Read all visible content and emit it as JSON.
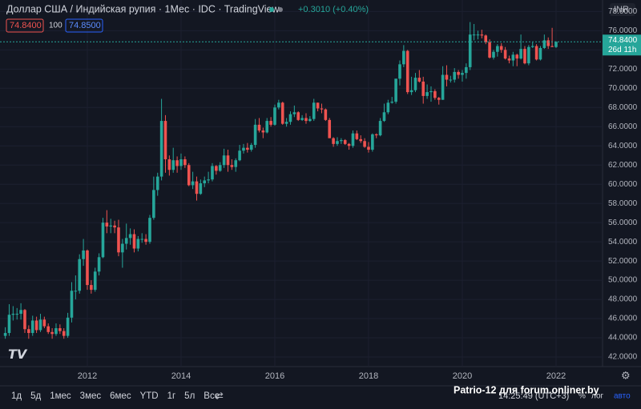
{
  "chart_data": {
    "type": "candlestick",
    "title": "Доллар США / Индийская рупия · 1Мес · IDC · TradingView",
    "change": "+0.3010 (+0.40%)",
    "bid": "74.8400",
    "spread": "100",
    "ask": "74.8500",
    "currency": "INR",
    "price_label": "74.8400",
    "countdown": "26d 11h",
    "timeframes": [
      "1д",
      "5д",
      "1мес",
      "3мес",
      "6мес",
      "YTD",
      "1г",
      "5л",
      "Все"
    ],
    "clock": "14:25:49 (UTC+3)",
    "scale_buttons": [
      "%",
      "лог",
      "авто"
    ],
    "watermark": "Patrio-12 для forum.onliner.by",
    "up_color": "#26a69a",
    "down_color": "#ef5350",
    "grid": true,
    "categories": [
      null,
      null,
      null,
      null,
      null,
      null,
      null,
      null,
      null,
      null,
      null,
      null,
      null,
      null,
      null,
      null,
      null,
      null,
      null,
      null,
      null,
      "2012",
      null,
      null,
      null,
      null,
      null,
      null,
      null,
      null,
      null,
      null,
      null,
      null,
      null,
      null,
      null,
      null,
      null,
      null,
      null,
      null,
      null,
      null,
      null,
      "2014",
      null,
      null,
      null,
      null,
      null,
      null,
      null,
      null,
      null,
      null,
      null,
      null,
      null,
      null,
      null,
      null,
      null,
      null,
      null,
      null,
      null,
      null,
      null,
      "2016",
      null,
      null,
      null,
      null,
      null,
      null,
      null,
      null,
      null,
      null,
      null,
      null,
      null,
      null,
      null,
      null,
      null,
      null,
      null,
      null,
      null,
      null,
      null,
      "2018",
      null,
      null,
      null,
      null,
      null,
      null,
      null,
      null,
      null,
      null,
      null,
      null,
      null,
      null,
      null,
      null,
      null,
      null,
      null,
      null,
      null,
      null,
      null,
      "2020",
      null,
      null,
      null,
      null,
      null,
      null,
      null,
      null,
      null,
      null,
      null,
      null,
      null,
      null,
      null,
      null,
      null,
      null,
      null,
      null,
      null,
      null,
      null,
      "2022"
    ],
    "open": [
      44.2,
      44.5,
      46.4,
      46.5,
      46.5,
      46.9,
      44.9,
      44.5,
      45.8,
      44.8,
      45.9,
      45.2,
      44.6,
      44.4,
      45.0,
      44.7,
      44.2,
      46.1,
      48.9,
      48.9,
      52.2,
      53.1,
      49.5,
      49.0,
      50.9,
      52.4,
      56.0,
      55.6,
      55.7,
      55.5,
      52.9,
      53.8,
      54.4,
      54.8,
      53.3,
      54.3,
      54.3,
      54.0,
      56.5,
      59.4,
      60.8,
      66.6,
      62.6,
      61.5,
      62.5,
      61.9,
      62.6,
      62.0,
      59.9,
      60.3,
      59.0,
      60.1,
      60.4,
      60.5,
      61.9,
      61.4,
      62.0,
      63.0,
      62.0,
      61.8,
      62.5,
      63.5,
      63.8,
      63.6,
      64.1,
      66.2,
      65.6,
      65.4,
      66.6,
      66.2,
      68.0,
      68.5,
      66.3,
      66.5,
      67.3,
      67.5,
      66.7,
      66.9,
      66.6,
      66.8,
      68.5,
      67.9,
      67.8,
      66.7,
      64.8,
      64.2,
      64.5,
      64.6,
      64.2,
      64.0,
      65.3,
      64.7,
      64.5,
      63.9,
      63.6,
      65.2,
      65.1,
      66.6,
      67.5,
      68.5,
      68.6,
      71.0,
      72.5,
      73.9,
      69.6,
      69.8,
      71.1,
      70.7,
      69.2,
      69.6,
      69.7,
      69.0,
      68.8,
      71.4,
      70.9,
      70.9,
      71.7,
      71.4,
      71.6,
      72.2,
      75.6,
      75.6,
      75.6,
      75.5,
      74.8,
      73.2,
      73.8,
      74.4,
      74.0,
      73.1,
      72.9,
      73.5,
      73.1,
      74.1,
      72.6,
      74.3,
      74.4,
      73.0,
      74.2,
      75.0,
      74.4,
      74.3
    ],
    "high": [
      45.1,
      47.5,
      47.3,
      47.1,
      47.6,
      47.0,
      45.3,
      46.3,
      46.2,
      46.5,
      46.2,
      45.5,
      45.0,
      45.5,
      45.4,
      45.0,
      46.6,
      49.8,
      50.5,
      52.7,
      54.3,
      53.2,
      50.0,
      51.3,
      52.8,
      56.5,
      57.3,
      56.4,
      56.2,
      56.3,
      54.3,
      55.9,
      55.4,
      55.3,
      54.6,
      54.9,
      54.8,
      56.8,
      60.8,
      61.2,
      68.9,
      67.2,
      63.0,
      63.8,
      62.9,
      63.2,
      62.9,
      62.2,
      61.3,
      60.8,
      60.5,
      60.8,
      61.3,
      62.2,
      62.0,
      62.3,
      63.7,
      63.6,
      62.6,
      62.7,
      64.1,
      64.2,
      64.3,
      64.3,
      66.8,
      66.9,
      65.9,
      66.9,
      67.0,
      68.3,
      68.8,
      68.6,
      66.9,
      67.6,
      68.2,
      67.6,
      67.2,
      67.4,
      67.1,
      68.9,
      68.5,
      68.4,
      67.9,
      66.9,
      64.9,
      64.9,
      64.8,
      64.7,
      64.3,
      65.6,
      65.6,
      65.1,
      64.8,
      64.4,
      65.3,
      65.3,
      66.9,
      68.4,
      68.8,
      69.1,
      71.0,
      72.9,
      74.5,
      74.0,
      71.2,
      71.6,
      71.9,
      71.2,
      70.4,
      70.2,
      69.9,
      69.1,
      72.3,
      72.4,
      71.3,
      72.1,
      71.9,
      71.9,
      72.6,
      76.9,
      76.7,
      76.0,
      76.1,
      75.6,
      75.1,
      74.0,
      74.6,
      74.7,
      74.3,
      73.4,
      73.8,
      73.6,
      75.6,
      74.4,
      74.5,
      74.8,
      74.6,
      74.4,
      75.6,
      75.3,
      76.3,
      74.9
    ],
    "low": [
      43.9,
      44.2,
      45.8,
      45.9,
      45.9,
      44.5,
      43.9,
      44.2,
      44.5,
      44.6,
      45.0,
      44.4,
      43.9,
      44.2,
      44.4,
      43.9,
      44.0,
      45.6,
      48.0,
      48.6,
      51.5,
      49.0,
      48.6,
      48.8,
      50.5,
      52.3,
      54.9,
      54.9,
      54.9,
      52.5,
      51.3,
      53.2,
      53.7,
      52.9,
      53.0,
      53.9,
      53.7,
      53.8,
      56.3,
      58.8,
      60.4,
      61.2,
      60.9,
      61.2,
      61.2,
      61.5,
      61.7,
      59.8,
      59.5,
      58.3,
      58.9,
      59.7,
      60.1,
      60.3,
      61.0,
      61.3,
      61.7,
      61.3,
      61.5,
      61.3,
      62.4,
      63.2,
      63.3,
      63.4,
      63.8,
      65.4,
      64.8,
      65.3,
      66.0,
      66.1,
      67.8,
      66.2,
      66.0,
      66.2,
      67.0,
      66.6,
      66.6,
      66.3,
      66.5,
      66.6,
      67.6,
      67.4,
      66.6,
      64.8,
      63.9,
      64.0,
      64.2,
      64.1,
      63.6,
      63.8,
      64.6,
      64.3,
      63.8,
      63.3,
      63.4,
      64.8,
      65.0,
      66.5,
      67.3,
      68.4,
      68.4,
      70.3,
      72.2,
      69.4,
      69.3,
      69.6,
      70.6,
      68.4,
      68.9,
      68.6,
      68.8,
      68.3,
      68.8,
      70.2,
      70.6,
      70.6,
      71.0,
      70.7,
      71.0,
      71.9,
      75.0,
      75.1,
      75.2,
      74.6,
      73.1,
      73.0,
      73.3,
      73.7,
      73.0,
      72.6,
      72.3,
      72.3,
      73.0,
      72.5,
      72.4,
      74.2,
      72.9,
      72.9,
      74.1,
      74.1,
      74.3,
      74.2
    ],
    "close": [
      44.5,
      46.4,
      46.5,
      46.5,
      46.9,
      44.9,
      44.5,
      45.8,
      44.8,
      45.9,
      45.2,
      44.6,
      44.4,
      45.0,
      44.7,
      44.2,
      46.1,
      48.9,
      48.9,
      52.2,
      53.1,
      49.5,
      49.0,
      50.9,
      52.4,
      56.0,
      55.6,
      55.7,
      55.5,
      52.9,
      53.8,
      54.4,
      54.8,
      53.3,
      54.3,
      54.3,
      54.0,
      56.5,
      59.4,
      60.8,
      66.6,
      62.6,
      61.5,
      62.5,
      61.9,
      62.6,
      62.0,
      59.9,
      60.3,
      59.0,
      60.1,
      60.4,
      60.5,
      61.9,
      61.4,
      62.0,
      63.0,
      62.0,
      61.8,
      62.5,
      63.5,
      63.8,
      63.6,
      64.1,
      66.2,
      65.6,
      65.4,
      66.6,
      66.2,
      68.0,
      68.5,
      66.3,
      66.5,
      67.3,
      67.5,
      66.7,
      66.9,
      66.6,
      66.8,
      68.5,
      67.9,
      67.8,
      66.7,
      64.8,
      64.2,
      64.5,
      64.6,
      64.2,
      64.0,
      65.3,
      64.7,
      64.5,
      63.9,
      63.6,
      65.2,
      65.1,
      66.6,
      67.5,
      68.5,
      68.6,
      71.0,
      72.5,
      73.9,
      69.6,
      69.8,
      71.1,
      70.7,
      69.2,
      69.6,
      69.7,
      69.0,
      68.8,
      71.4,
      70.9,
      70.9,
      71.7,
      71.4,
      71.6,
      72.2,
      75.6,
      75.6,
      75.6,
      75.5,
      74.8,
      73.2,
      73.8,
      74.4,
      74.0,
      73.1,
      72.9,
      73.5,
      73.1,
      74.1,
      72.6,
      74.3,
      74.4,
      73.0,
      74.2,
      75.0,
      74.4,
      74.3,
      74.84
    ],
    "ylim": [
      41.0,
      79.2
    ],
    "yticks": [
      {
        "value": 42,
        "label": "42.0000"
      },
      {
        "value": 44,
        "label": "44.0000"
      },
      {
        "value": 46,
        "label": "46.0000"
      },
      {
        "value": 48,
        "label": "48.0000"
      },
      {
        "value": 50,
        "label": "50.0000"
      },
      {
        "value": 52,
        "label": "52.0000"
      },
      {
        "value": 54,
        "label": "54.0000"
      },
      {
        "value": 56,
        "label": "56.0000"
      },
      {
        "value": 58,
        "label": "58.0000"
      },
      {
        "value": 60,
        "label": "60.0000"
      },
      {
        "value": 62,
        "label": "62.0000"
      },
      {
        "value": 64,
        "label": "64.0000"
      },
      {
        "value": 66,
        "label": "66.0000"
      },
      {
        "value": 68,
        "label": "68.0000"
      },
      {
        "value": 70,
        "label": "70.0000"
      },
      {
        "value": 72,
        "label": "72.0000"
      },
      {
        "value": 74,
        "label": "74.0000"
      },
      {
        "value": 76,
        "label": "76.0000"
      },
      {
        "value": 78,
        "label": "78.0000"
      }
    ]
  }
}
